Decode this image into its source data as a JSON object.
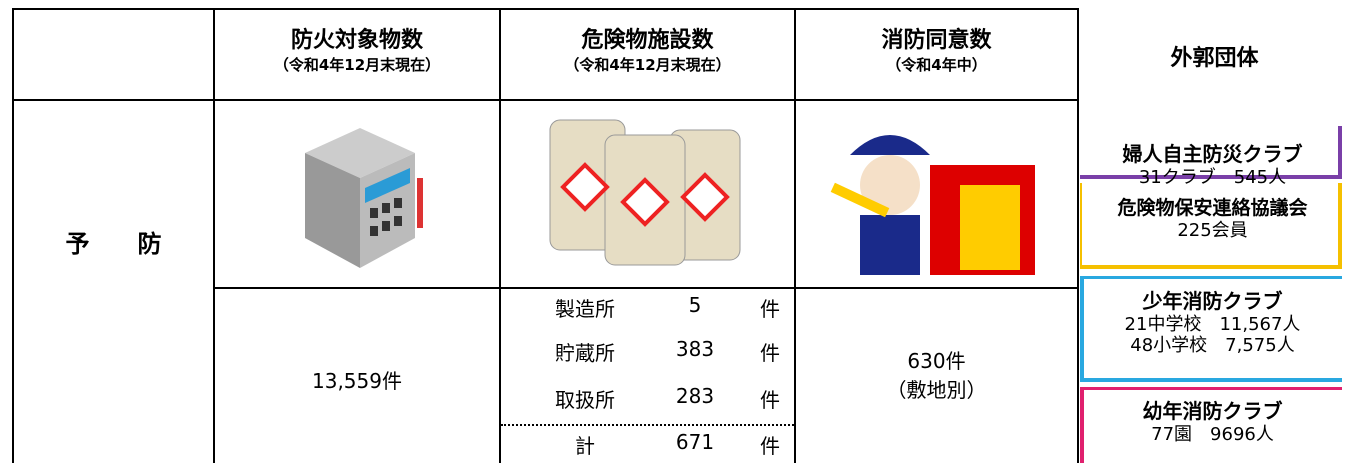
{
  "row_label": "予　　防",
  "columns": [
    {
      "title": "防火対象物数",
      "subtitle": "（令和4年12月末現在）"
    },
    {
      "title": "危険物施設数",
      "subtitle": "（令和4年12月末現在）"
    },
    {
      "title": "消防同意数",
      "subtitle": "（令和4年中）"
    },
    {
      "title": "外郭団体"
    }
  ],
  "fire_objects": "13,559件",
  "facilities": [
    {
      "name": "製造所",
      "count": 5,
      "unit": "件"
    },
    {
      "name": "貯蔵所",
      "count": 383,
      "unit": "件"
    },
    {
      "name": "取扱所",
      "count": 283,
      "unit": "件"
    },
    {
      "name": "計",
      "count": 671,
      "unit": "件"
    }
  ],
  "consent": {
    "value": "630件",
    "note": "（敷地別）"
  },
  "organizations": [
    {
      "name": "婦人自主防災クラブ",
      "lines": [
        "31クラブ　545人"
      ]
    },
    {
      "name": "危険物保安連絡協議会",
      "lines": [
        "225会員"
      ]
    },
    {
      "name": "少年消防クラブ",
      "lines": [
        "21中学校　11,567人",
        "48小学校　7,575人"
      ]
    },
    {
      "name": "幼年消防クラブ",
      "lines": [
        "77園　9696人"
      ]
    }
  ]
}
